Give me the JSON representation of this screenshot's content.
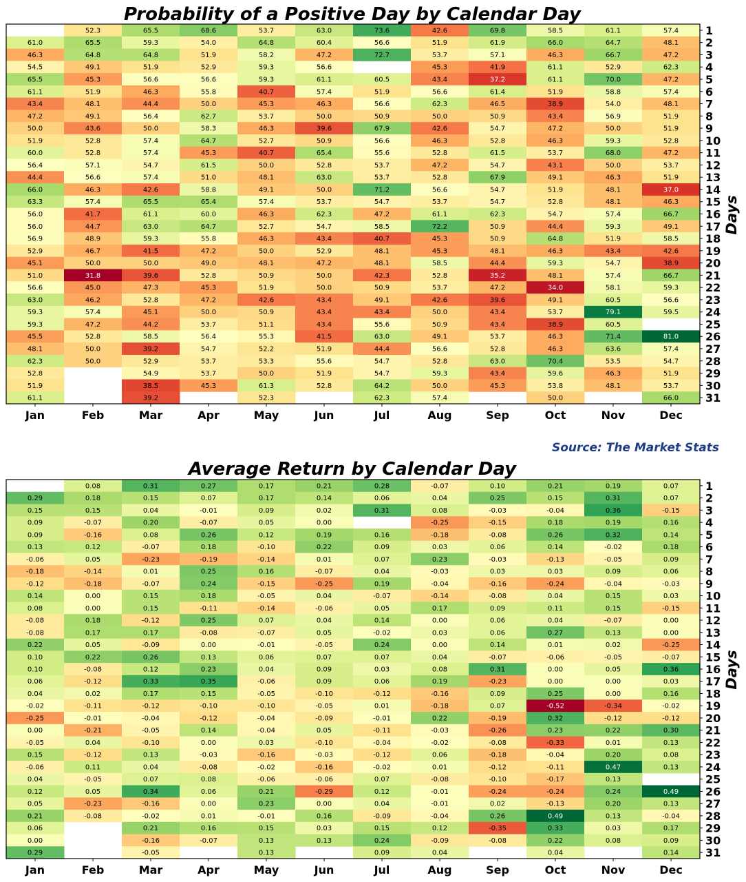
{
  "source_label": "Source: The Market Stats",
  "chart_data": [
    {
      "type": "heatmap",
      "title": "Probability of a Positive Day by Calendar Day",
      "xlabel": "",
      "ylabel": "Days",
      "decimals": 1,
      "color_range": [
        31.8,
        81.0
      ],
      "months": [
        "Jan",
        "Feb",
        "Mar",
        "Apr",
        "May",
        "Jun",
        "Jul",
        "Aug",
        "Sep",
        "Oct",
        "Nov",
        "Dec"
      ],
      "days": [
        "1",
        "2",
        "3",
        "4",
        "5",
        "6",
        "7",
        "8",
        "9",
        "10",
        "11",
        "12",
        "13",
        "14",
        "15",
        "16",
        "17",
        "18",
        "19",
        "20",
        "21",
        "22",
        "23",
        "24",
        "25",
        "26",
        "27",
        "28",
        "29",
        "30",
        "31"
      ],
      "values": [
        [
          null,
          52.3,
          65.5,
          68.6,
          53.7,
          63.0,
          73.6,
          42.6,
          69.8,
          58.5,
          61.1,
          57.4
        ],
        [
          61.0,
          65.5,
          59.3,
          54.0,
          64.8,
          60.4,
          56.6,
          51.9,
          61.9,
          66.0,
          64.7,
          48.1
        ],
        [
          46.3,
          64.8,
          64.8,
          51.9,
          58.2,
          47.2,
          72.7,
          53.7,
          57.1,
          46.3,
          66.7,
          47.2
        ],
        [
          54.5,
          49.1,
          51.9,
          52.9,
          59.3,
          56.6,
          null,
          45.3,
          41.9,
          61.1,
          52.9,
          62.3
        ],
        [
          65.5,
          45.3,
          56.6,
          56.6,
          59.3,
          61.1,
          60.5,
          43.4,
          37.2,
          61.1,
          70.0,
          47.2
        ],
        [
          61.1,
          51.9,
          46.3,
          55.8,
          40.7,
          57.4,
          51.9,
          56.6,
          61.4,
          51.9,
          58.8,
          57.4
        ],
        [
          43.4,
          48.1,
          44.4,
          50.0,
          45.3,
          46.3,
          56.6,
          62.3,
          46.5,
          38.9,
          54.0,
          48.1
        ],
        [
          47.2,
          49.1,
          56.4,
          62.7,
          53.7,
          50.0,
          50.9,
          50.0,
          50.9,
          43.4,
          56.9,
          51.9
        ],
        [
          50.0,
          43.6,
          50.0,
          58.3,
          46.3,
          39.6,
          67.9,
          42.6,
          54.7,
          47.2,
          50.0,
          51.9
        ],
        [
          51.9,
          52.8,
          57.4,
          64.7,
          52.7,
          50.9,
          56.6,
          46.3,
          52.8,
          46.3,
          59.3,
          52.8
        ],
        [
          60.0,
          52.8,
          57.4,
          45.3,
          40.7,
          65.4,
          55.6,
          52.8,
          61.5,
          53.7,
          68.0,
          47.2
        ],
        [
          56.4,
          57.1,
          54.7,
          61.5,
          50.0,
          52.8,
          53.7,
          47.2,
          54.7,
          43.1,
          50.0,
          53.7
        ],
        [
          44.4,
          56.6,
          57.4,
          51.0,
          48.1,
          63.0,
          53.7,
          52.8,
          67.9,
          49.1,
          46.3,
          51.9
        ],
        [
          66.0,
          46.3,
          42.6,
          58.8,
          49.1,
          50.0,
          71.2,
          56.6,
          54.7,
          51.9,
          48.1,
          37.0
        ],
        [
          63.3,
          57.4,
          65.5,
          65.4,
          57.4,
          53.7,
          54.7,
          53.7,
          54.7,
          52.8,
          48.1,
          46.3
        ],
        [
          56.0,
          41.7,
          61.1,
          60.0,
          46.3,
          62.3,
          47.2,
          61.1,
          62.3,
          54.7,
          57.4,
          66.7
        ],
        [
          56.0,
          44.7,
          63.0,
          64.7,
          52.7,
          54.7,
          58.5,
          72.2,
          50.9,
          44.4,
          59.3,
          49.1
        ],
        [
          56.9,
          48.9,
          59.3,
          55.8,
          46.3,
          43.4,
          40.7,
          45.3,
          50.9,
          64.8,
          51.9,
          58.5
        ],
        [
          52.9,
          46.7,
          41.5,
          47.2,
          50.0,
          52.9,
          48.1,
          45.3,
          48.1,
          46.3,
          43.4,
          42.6
        ],
        [
          45.1,
          50.0,
          50.0,
          49.0,
          48.1,
          47.2,
          48.1,
          58.5,
          44.4,
          59.3,
          54.7,
          38.9
        ],
        [
          51.0,
          31.8,
          39.6,
          52.8,
          50.9,
          50.0,
          42.3,
          52.8,
          35.2,
          48.1,
          57.4,
          66.7
        ],
        [
          56.6,
          45.0,
          47.3,
          45.3,
          51.9,
          50.0,
          50.9,
          53.7,
          47.2,
          34.0,
          58.1,
          59.3
        ],
        [
          63.0,
          46.2,
          52.8,
          47.2,
          42.6,
          43.4,
          49.1,
          42.6,
          39.6,
          49.1,
          60.5,
          56.6
        ],
        [
          59.3,
          57.4,
          45.1,
          50.0,
          50.9,
          43.4,
          43.4,
          50.0,
          43.4,
          53.7,
          79.1,
          59.5
        ],
        [
          59.3,
          47.2,
          44.2,
          53.7,
          51.1,
          43.4,
          55.6,
          50.9,
          43.4,
          38.9,
          60.5,
          null
        ],
        [
          45.5,
          52.8,
          58.5,
          56.4,
          55.3,
          41.5,
          63.0,
          49.1,
          53.7,
          46.3,
          71.4,
          81.0
        ],
        [
          48.1,
          50.0,
          39.2,
          54.7,
          52.2,
          51.9,
          44.4,
          56.6,
          52.8,
          46.3,
          63.6,
          57.4
        ],
        [
          62.3,
          50.0,
          52.9,
          53.7,
          53.3,
          55.6,
          54.7,
          52.8,
          63.0,
          70.4,
          53.5,
          54.7
        ],
        [
          52.8,
          null,
          54.9,
          53.7,
          50.0,
          51.9,
          54.7,
          59.3,
          43.4,
          59.6,
          46.3,
          51.9
        ],
        [
          51.9,
          null,
          38.5,
          45.3,
          61.3,
          52.8,
          64.2,
          50.0,
          45.3,
          53.8,
          48.1,
          53.7
        ],
        [
          61.1,
          null,
          39.2,
          null,
          52.3,
          null,
          62.3,
          57.4,
          null,
          50.0,
          null,
          66.0
        ]
      ]
    },
    {
      "type": "heatmap",
      "title": "Average Return by Calendar Day",
      "xlabel": "",
      "ylabel": "Days",
      "decimals": 2,
      "color_range": [
        -0.52,
        0.49
      ],
      "months": [
        "Jan",
        "Feb",
        "Mar",
        "Apr",
        "May",
        "Jun",
        "Jul",
        "Aug",
        "Sep",
        "Oct",
        "Nov",
        "Dec"
      ],
      "days": [
        "1",
        "2",
        "3",
        "4",
        "5",
        "6",
        "7",
        "8",
        "9",
        "10",
        "11",
        "12",
        "13",
        "14",
        "15",
        "16",
        "17",
        "18",
        "19",
        "20",
        "21",
        "22",
        "23",
        "24",
        "25",
        "26",
        "27",
        "28",
        "29",
        "30",
        "31"
      ],
      "values": [
        [
          null,
          0.08,
          0.31,
          0.27,
          0.17,
          0.21,
          0.28,
          -0.07,
          0.1,
          0.21,
          0.19,
          0.07
        ],
        [
          0.29,
          0.18,
          0.15,
          0.07,
          0.17,
          0.14,
          0.06,
          0.04,
          0.25,
          0.15,
          0.31,
          0.07
        ],
        [
          0.15,
          0.15,
          0.04,
          -0.01,
          0.09,
          0.02,
          0.31,
          0.08,
          -0.03,
          -0.04,
          0.36,
          -0.15
        ],
        [
          0.09,
          -0.07,
          0.2,
          -0.07,
          0.05,
          -0.0,
          null,
          -0.25,
          -0.15,
          0.18,
          0.19,
          0.16
        ],
        [
          0.09,
          -0.16,
          0.08,
          0.26,
          0.12,
          0.19,
          0.16,
          -0.18,
          -0.08,
          0.26,
          0.32,
          0.14
        ],
        [
          0.13,
          0.12,
          -0.07,
          0.18,
          -0.1,
          0.22,
          0.09,
          0.03,
          0.06,
          0.14,
          -0.02,
          0.18
        ],
        [
          -0.06,
          0.05,
          -0.23,
          -0.19,
          -0.14,
          0.01,
          0.07,
          0.23,
          -0.03,
          -0.13,
          -0.05,
          0.09
        ],
        [
          -0.18,
          -0.14,
          0.01,
          0.25,
          0.16,
          -0.07,
          0.04,
          -0.03,
          0.03,
          0.03,
          0.09,
          0.06
        ],
        [
          -0.12,
          -0.18,
          -0.07,
          0.24,
          -0.15,
          -0.25,
          0.19,
          -0.04,
          -0.16,
          -0.24,
          -0.04,
          -0.03
        ],
        [
          0.14,
          -0.0,
          0.15,
          0.18,
          -0.05,
          0.04,
          -0.07,
          -0.14,
          -0.08,
          0.04,
          0.15,
          0.03
        ],
        [
          0.08,
          -0.0,
          0.15,
          -0.11,
          -0.14,
          -0.06,
          0.05,
          0.17,
          0.09,
          0.11,
          0.15,
          -0.15
        ],
        [
          -0.08,
          0.18,
          -0.12,
          0.25,
          0.07,
          0.04,
          0.14,
          -0.0,
          0.06,
          0.04,
          -0.07,
          0.0
        ],
        [
          -0.08,
          0.17,
          0.17,
          -0.08,
          -0.07,
          0.05,
          -0.02,
          0.03,
          0.06,
          0.27,
          0.13,
          -0.0
        ],
        [
          0.22,
          0.05,
          -0.09,
          -0.0,
          -0.01,
          -0.05,
          0.24,
          0.0,
          0.14,
          0.01,
          0.02,
          -0.25
        ],
        [
          0.1,
          0.22,
          0.26,
          0.13,
          0.06,
          0.07,
          0.07,
          0.04,
          -0.07,
          -0.06,
          -0.05,
          -0.07
        ],
        [
          0.1,
          -0.08,
          0.12,
          0.23,
          0.04,
          0.09,
          0.03,
          0.08,
          0.31,
          0.0,
          0.05,
          0.36
        ],
        [
          0.06,
          -0.12,
          0.33,
          0.35,
          -0.06,
          0.09,
          0.06,
          0.19,
          -0.23,
          -0.0,
          0.0,
          0.03
        ],
        [
          0.04,
          0.02,
          0.17,
          0.15,
          -0.05,
          -0.1,
          -0.12,
          -0.16,
          0.09,
          0.25,
          -0.0,
          0.16
        ],
        [
          -0.02,
          -0.11,
          -0.12,
          -0.1,
          -0.1,
          -0.05,
          0.01,
          -0.18,
          0.07,
          -0.52,
          -0.34,
          -0.02
        ],
        [
          -0.25,
          -0.01,
          -0.04,
          -0.12,
          -0.04,
          -0.09,
          -0.01,
          0.22,
          -0.19,
          0.32,
          -0.12,
          -0.12
        ],
        [
          -0.0,
          -0.21,
          -0.05,
          0.14,
          -0.04,
          0.05,
          -0.11,
          -0.03,
          -0.26,
          0.23,
          0.22,
          0.3
        ],
        [
          -0.05,
          0.04,
          -0.1,
          0.0,
          0.03,
          -0.1,
          -0.04,
          -0.02,
          -0.08,
          -0.33,
          0.01,
          0.13
        ],
        [
          0.15,
          -0.12,
          0.13,
          -0.03,
          -0.16,
          -0.03,
          -0.12,
          0.06,
          -0.18,
          -0.04,
          0.2,
          0.08
        ],
        [
          -0.06,
          0.11,
          0.04,
          -0.08,
          -0.02,
          -0.16,
          -0.02,
          0.01,
          -0.12,
          -0.11,
          0.47,
          0.13
        ],
        [
          0.04,
          -0.05,
          0.07,
          0.08,
          -0.06,
          -0.06,
          0.07,
          -0.08,
          -0.1,
          -0.17,
          0.13,
          null
        ],
        [
          0.12,
          0.05,
          0.34,
          0.06,
          0.21,
          -0.29,
          0.12,
          -0.01,
          -0.24,
          -0.24,
          0.24,
          0.49
        ],
        [
          0.05,
          -0.23,
          -0.16,
          -0.0,
          0.23,
          0.0,
          0.04,
          -0.01,
          0.02,
          -0.13,
          0.2,
          0.13
        ],
        [
          0.21,
          -0.08,
          -0.02,
          0.01,
          -0.01,
          0.16,
          -0.09,
          -0.04,
          0.26,
          0.49,
          0.13,
          -0.04
        ],
        [
          0.06,
          null,
          0.21,
          0.16,
          0.15,
          0.03,
          0.15,
          0.12,
          -0.35,
          0.33,
          0.03,
          0.17
        ],
        [
          0.0,
          null,
          -0.16,
          -0.07,
          0.13,
          0.13,
          0.24,
          -0.09,
          -0.08,
          0.22,
          0.08,
          0.09
        ],
        [
          0.29,
          null,
          -0.05,
          null,
          0.13,
          null,
          0.09,
          0.04,
          null,
          0.04,
          null,
          0.14
        ]
      ]
    }
  ],
  "colors": {
    "source": "#1f3c88",
    "text": "#000000",
    "frame": "#000000",
    "colormap": [
      "#a50026",
      "#d73027",
      "#f46d43",
      "#fdae61",
      "#fee08b",
      "#ffffbf",
      "#d9ef8b",
      "#a6d96a",
      "#66bd63",
      "#1a9850",
      "#006837"
    ]
  }
}
